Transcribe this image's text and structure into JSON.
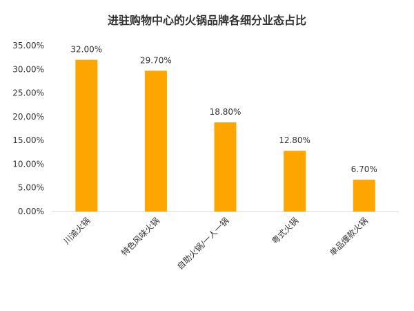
{
  "chart_data": {
    "type": "bar",
    "title": "进驻购物中心的火锅品牌各细分业态占比",
    "categories": [
      "川渝火锅",
      "特色风味火锅",
      "自助火锅/一人一锅",
      "粤式火锅",
      "单品爆款火锅"
    ],
    "values": [
      32.0,
      29.7,
      18.8,
      12.8,
      6.7
    ],
    "data_labels": [
      "32.00%",
      "29.70%",
      "18.80%",
      "12.80%",
      "6.70%"
    ],
    "ylim": [
      0,
      35
    ],
    "yticks": [
      0,
      5,
      10,
      15,
      20,
      25,
      30,
      35
    ],
    "ytick_labels": [
      "0.00%",
      "5.00%",
      "10.00%",
      "15.00%",
      "20.00%",
      "25.00%",
      "30.00%",
      "35.00%"
    ],
    "xlabel": "",
    "ylabel": "",
    "grid": false,
    "legend": "none",
    "bar_color": "#FFA500"
  }
}
